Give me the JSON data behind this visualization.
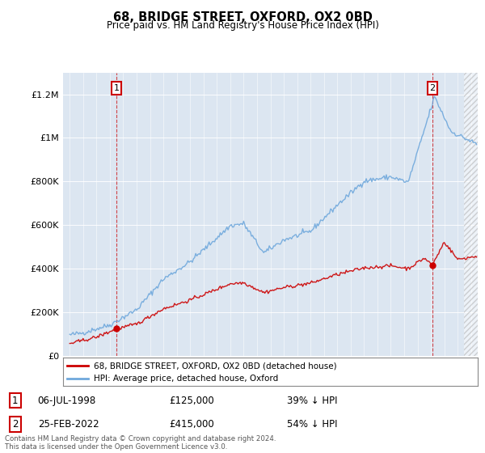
{
  "title": "68, BRIDGE STREET, OXFORD, OX2 0BD",
  "subtitle": "Price paid vs. HM Land Registry's House Price Index (HPI)",
  "sale1_date": "06-JUL-1998",
  "sale1_price": 125000,
  "sale1_label": "39% ↓ HPI",
  "sale2_date": "25-FEB-2022",
  "sale2_price": 415000,
  "sale2_label": "54% ↓ HPI",
  "legend_line1": "68, BRIDGE STREET, OXFORD, OX2 0BD (detached house)",
  "legend_line2": "HPI: Average price, detached house, Oxford",
  "footer": "Contains HM Land Registry data © Crown copyright and database right 2024.\nThis data is licensed under the Open Government Licence v3.0.",
  "hpi_color": "#6fa8dc",
  "sale_color": "#cc0000",
  "plot_bg_color": "#dce6f1",
  "ylim": [
    0,
    1300000
  ],
  "yticks": [
    0,
    200000,
    400000,
    600000,
    800000,
    1000000,
    1200000
  ],
  "xlim_start": 1994.5,
  "xlim_end": 2025.5,
  "sale1_x": 1998.5,
  "sale2_x": 2022.12
}
